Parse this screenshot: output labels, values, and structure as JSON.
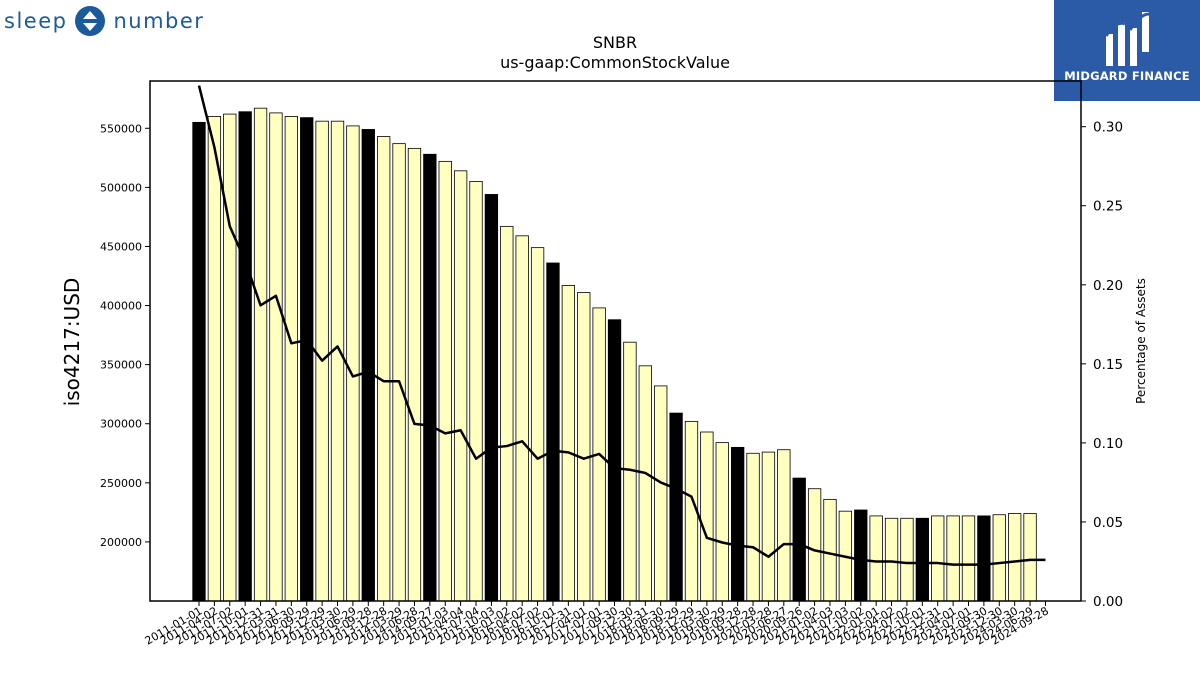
{
  "branding": {
    "left_logo_left": "sleep",
    "left_logo_right": "number",
    "right_logo_text": "MIDGARD FINANCE",
    "right_logo_bg": "#2b5aa6"
  },
  "chart_data": {
    "type": "bar",
    "title": "SNBR",
    "subtitle": "us-gaap:CommonStockValue",
    "ylabel": "iso4217:USD",
    "y2label": "Percentage of Assets",
    "ylim": [
      150000,
      590000
    ],
    "y2lim": [
      0.0,
      0.3289
    ],
    "yticks": [
      200000,
      250000,
      300000,
      350000,
      400000,
      450000,
      500000,
      550000
    ],
    "y2ticks": [
      "0.00",
      "0.05",
      "0.10",
      "0.15",
      "0.20",
      "0.25",
      "0.30"
    ],
    "colors": {
      "annual_bar": "#000000",
      "quarterly_bar": "#ffffc0",
      "bar_edge": "#000000",
      "line": "#000000"
    },
    "categories": [
      "2011-01-01",
      "2011-04-02",
      "2011-07-02",
      "2011-10-01",
      "2011-12-31",
      "2012-03-31",
      "2012-06-30",
      "2012-09-29",
      "2012-12-29",
      "2013-03-30",
      "2013-06-29",
      "2013-09-28",
      "2013-12-28",
      "2014-03-29",
      "2014-06-28",
      "2014-09-27",
      "2015-01-03",
      "2015-04-04",
      "2015-07-04",
      "2015-10-03",
      "2016-01-02",
      "2016-04-02",
      "2016-07-02",
      "2016-10-01",
      "2016-12-31",
      "2017-04-01",
      "2017-07-01",
      "2017-09-30",
      "2017-12-30",
      "2018-03-31",
      "2018-06-30",
      "2018-09-29",
      "2018-12-29",
      "2019-03-30",
      "2019-06-29",
      "2019-09-28",
      "2019-12-28",
      "2020-03-28",
      "2020-06-27",
      "2020-09-26",
      "2021-01-02",
      "2021-04-03",
      "2021-07-03",
      "2021-10-02",
      "2022-01-01",
      "2022-04-02",
      "2022-07-02",
      "2022-10-01",
      "2022-12-31",
      "2023-04-01",
      "2023-07-01",
      "2023-09-30",
      "2023-12-30",
      "2024-03-30",
      "2024-06-29",
      "2024-09-28"
    ],
    "values": [
      555000,
      560000,
      562000,
      564000,
      567000,
      563000,
      560000,
      559000,
      556000,
      556000,
      552000,
      549000,
      543000,
      537000,
      533000,
      528000,
      522000,
      514000,
      505000,
      494000,
      467000,
      459000,
      449000,
      436000,
      417000,
      411000,
      398000,
      388000,
      369000,
      349000,
      332000,
      309000,
      302000,
      293000,
      284000,
      280000,
      275000,
      276000,
      278000,
      254000,
      245000,
      236000,
      226000,
      227000,
      222000,
      220000,
      220000,
      220000,
      222000,
      222000,
      222000,
      222000,
      223000,
      224000,
      224000,
      null
    ],
    "annual": [
      true,
      false,
      false,
      true,
      false,
      false,
      false,
      true,
      false,
      false,
      false,
      true,
      false,
      false,
      false,
      true,
      false,
      false,
      false,
      true,
      false,
      false,
      false,
      true,
      false,
      false,
      false,
      true,
      false,
      false,
      false,
      true,
      false,
      false,
      false,
      true,
      false,
      false,
      false,
      true,
      false,
      false,
      false,
      true,
      false,
      false,
      false,
      true,
      false,
      false,
      false,
      true,
      false,
      false,
      false,
      false
    ],
    "pct_assets": [
      0.326,
      0.287,
      0.237,
      0.215,
      0.187,
      0.193,
      0.163,
      0.165,
      0.152,
      0.161,
      0.142,
      0.145,
      0.139,
      0.139,
      0.112,
      0.111,
      0.106,
      0.108,
      0.09,
      0.097,
      0.098,
      0.101,
      0.09,
      0.095,
      0.094,
      0.09,
      0.093,
      0.084,
      0.083,
      0.081,
      0.075,
      0.071,
      0.066,
      0.04,
      0.037,
      0.035,
      0.034,
      0.028,
      0.036,
      0.036,
      0.032,
      0.03,
      0.028,
      0.026,
      0.025,
      0.025,
      0.024,
      0.024,
      0.024,
      0.023,
      0.023,
      0.023,
      0.024,
      0.025,
      0.026,
      0.026
    ]
  }
}
